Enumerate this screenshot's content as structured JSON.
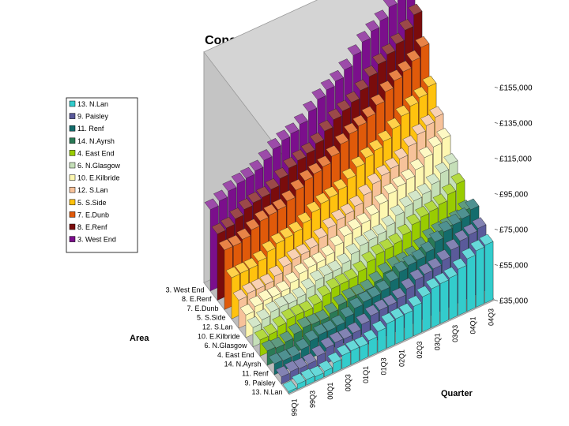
{
  "chart_data": {
    "type": "bar3d",
    "title": "Constant Quality Prices (Smoothed)",
    "xlabel": "Quarter",
    "ylabel": "Area",
    "zlim": [
      35000,
      155000
    ],
    "z_ticks": [
      "£35,000",
      "£55,000",
      "£75,000",
      "£95,000",
      "£115,000",
      "£135,000",
      "£155,000"
    ],
    "z_tick_values": [
      35000,
      55000,
      75000,
      95000,
      115000,
      135000,
      155000
    ],
    "quarters": [
      "99Q1",
      "99Q2",
      "99Q3",
      "99Q4",
      "00Q1",
      "00Q2",
      "00Q3",
      "00Q4",
      "01Q1",
      "01Q2",
      "01Q3",
      "01Q4",
      "02Q1",
      "02Q2",
      "02Q3",
      "02Q4",
      "03Q1",
      "03Q2",
      "03Q3",
      "03Q4",
      "04Q1",
      "04Q2",
      "04Q3"
    ],
    "quarter_ticks": [
      "99Q1",
      "99Q3",
      "00Q1",
      "00Q3",
      "01Q1",
      "01Q3",
      "02Q1",
      "02Q3",
      "03Q1",
      "03Q3",
      "04Q1",
      "04Q3"
    ],
    "legend_position": "left",
    "legend": [
      "13. N.Lan",
      "9. Paisley",
      "11. Renf",
      "14. N.Ayrsh",
      "4. East End",
      "6. N.Glasgow",
      "10. E.Kilbride",
      "12. S.Lan",
      "5. S.Side",
      "7. E.Dunb",
      "8. E.Renf",
      "3. West End"
    ],
    "area_ticks": [
      "3. West End",
      "8. E.Renf",
      "7. E.Dunb",
      "5. S.Side",
      "12. S.Lan",
      "10. E.Kilbride",
      "6. N.Glasgow",
      "4. East End",
      "14. N.Ayrsh",
      "11. Renf",
      "9. Paisley",
      "13. N.Lan"
    ],
    "series": [
      {
        "name": "3. West End",
        "color": "#7b0f8c",
        "start": 82000,
        "end": 160000
      },
      {
        "name": "8. E.Renf",
        "color": "#7a0c0c",
        "start": 73000,
        "end": 144000
      },
      {
        "name": "7. E.Dunb",
        "color": "#e05a0a",
        "start": 68000,
        "end": 132000
      },
      {
        "name": "5. S.Side",
        "color": "#ffc20e",
        "start": 57000,
        "end": 116000
      },
      {
        "name": "12. S.Lan",
        "color": "#f7c29a",
        "start": 50000,
        "end": 104000
      },
      {
        "name": "10. E.Kilbride",
        "color": "#fdf7b0",
        "start": 48000,
        "end": 96000
      },
      {
        "name": "6. N.Glasgow",
        "color": "#c5dfb8",
        "start": 47000,
        "end": 86000
      },
      {
        "name": "4. East End",
        "color": "#99cc00",
        "start": 45000,
        "end": 80000
      },
      {
        "name": "14. N.Ayrsh",
        "color": "#2a7a56",
        "start": 43000,
        "end": 71000
      },
      {
        "name": "11. Renf",
        "color": "#146c6c",
        "start": 40000,
        "end": 78000
      },
      {
        "name": "9. Paisley",
        "color": "#5a5a9a",
        "start": 38000,
        "end": 73000
      },
      {
        "name": "13. N.Lan",
        "color": "#33cccc",
        "start": 36000,
        "end": 68000
      }
    ]
  }
}
